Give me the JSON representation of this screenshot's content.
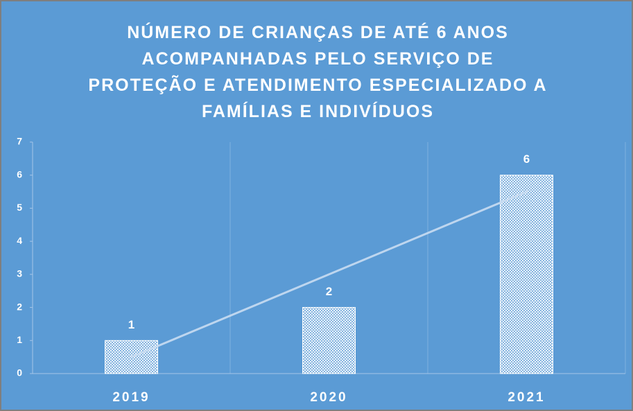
{
  "chart_data": {
    "type": "bar",
    "title": "NÚMERO DE CRIANÇAS DE ATÉ 6 ANOS ACOMPANHADAS PELO SERVIÇO DE PROTEÇÃO E ATENDIMENTO ESPECIALIZADO A FAMÍLIAS E INDIVÍDUOS",
    "categories": [
      "2019",
      "2020",
      "2021"
    ],
    "values": [
      1,
      2,
      6
    ],
    "color": "#ffffff",
    "ylim": [
      0,
      7
    ],
    "yticks": [
      0,
      1,
      2,
      3,
      4,
      5,
      6,
      7
    ],
    "grid": true,
    "trendline": "linear"
  }
}
